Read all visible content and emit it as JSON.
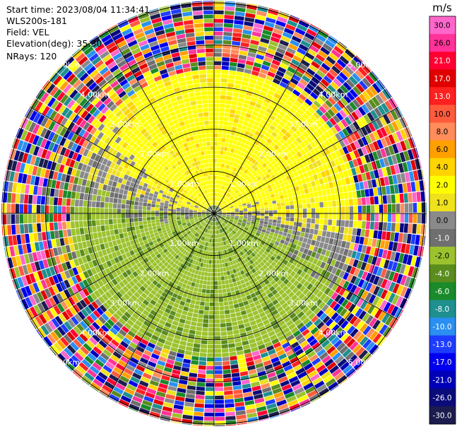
{
  "header": {
    "start_time": "Start time: 2023/08/04 11:34:41",
    "instrument": "WLS200s-181",
    "field": "Field: VEL",
    "elevation": "Elevation(deg): 35.30",
    "nrays": "NRays: 120"
  },
  "chart_data": {
    "type": "heatmap",
    "subtype": "polar PPI scan",
    "field": "VEL",
    "n_rays": 120,
    "range_rings": [
      "1.00km",
      "2.00km",
      "3.00km",
      "4.00km",
      "5.00km"
    ],
    "colorbar": {
      "unit": "m/s",
      "levels": [
        {
          "label": "-30.0",
          "color": "#1c1c4e"
        },
        {
          "label": "-26.0",
          "color": "#0b0b7a"
        },
        {
          "label": "-21.0",
          "color": "#0000b8"
        },
        {
          "label": "-17.0",
          "color": "#0000ee"
        },
        {
          "label": "-13.0",
          "color": "#1e3cff"
        },
        {
          "label": "-10.0",
          "color": "#2a8ff0"
        },
        {
          "label": "-8.0",
          "color": "#1f8f8f"
        },
        {
          "label": "-6.0",
          "color": "#1a8a2a"
        },
        {
          "label": "-4.0",
          "color": "#5a8c1e"
        },
        {
          "label": "-2.0",
          "color": "#9cc22e"
        },
        {
          "label": "-1.0",
          "color": "#6f6f6f"
        },
        {
          "label": "0.0",
          "color": "#8a8a8a"
        },
        {
          "label": "1.0",
          "color": "#f0e11e"
        },
        {
          "label": "2.0",
          "color": "#ffff00"
        },
        {
          "label": "4.0",
          "color": "#ffd400"
        },
        {
          "label": "6.0",
          "color": "#ffa000"
        },
        {
          "label": "8.0",
          "color": "#ff8c5a"
        },
        {
          "label": "10.0",
          "color": "#ff5a3c"
        },
        {
          "label": "13.0",
          "color": "#ff2020"
        },
        {
          "label": "17.0",
          "color": "#e00000"
        },
        {
          "label": "21.0",
          "color": "#ff0033"
        },
        {
          "label": "26.0",
          "color": "#ff3399"
        },
        {
          "label": "30.0",
          "color": "#ff66cc"
        }
      ]
    },
    "pattern": {
      "inner_zone": "yellow (positive, toward north) in upper half, green (negative) in lower half, gray near zero along the boundary",
      "outer_zone": "noisy multicolor returns outside ~3.4 km"
    }
  }
}
